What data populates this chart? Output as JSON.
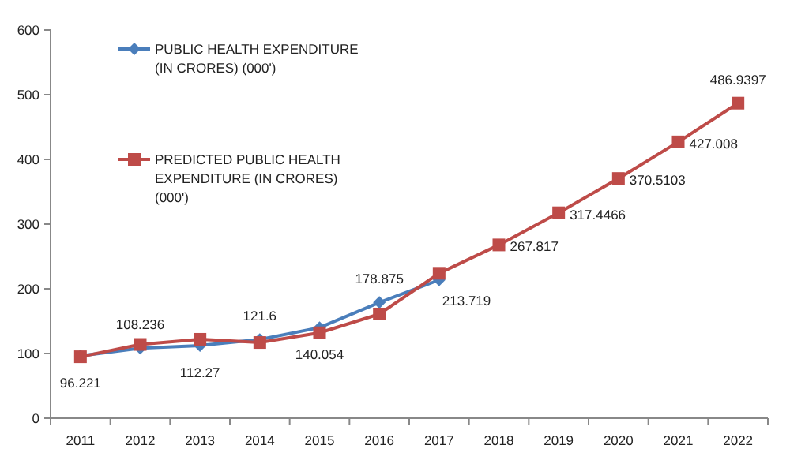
{
  "chart_data": {
    "type": "line",
    "categories": [
      "2011",
      "2012",
      "2013",
      "2014",
      "2015",
      "2016",
      "2017",
      "2018",
      "2019",
      "2020",
      "2021",
      "2022"
    ],
    "series": [
      {
        "name": "PUBLIC HEALTH EXPENDITURE (IN CRORES) (000')",
        "color": "#4a7ebb",
        "marker": "diamond",
        "values": [
          96.221,
          108.236,
          112.27,
          121.6,
          140.054,
          178.875,
          213.719,
          null,
          null,
          null,
          null,
          null
        ],
        "value_labels": [
          "96.221",
          "108.236",
          "112.27",
          "121.6",
          "140.054",
          "178.875",
          "213.719",
          null,
          null,
          null,
          null,
          null
        ]
      },
      {
        "name": "PREDICTED PUBLIC HEALTH EXPENDITURE (IN CRORES) (000')",
        "color": "#be4b48",
        "marker": "square",
        "values": [
          95,
          114,
          122,
          117,
          132,
          161,
          224,
          267.817,
          317.4466,
          370.5103,
          427.008,
          486.9397
        ],
        "value_labels": [
          null,
          null,
          null,
          null,
          null,
          null,
          null,
          "267.817",
          "317.4466",
          "370.5103",
          "427.008",
          "486.9397"
        ]
      }
    ],
    "ylim": [
      0,
      600
    ],
    "yticks": [
      0,
      100,
      200,
      300,
      400,
      500,
      600
    ],
    "legend": "top left"
  }
}
